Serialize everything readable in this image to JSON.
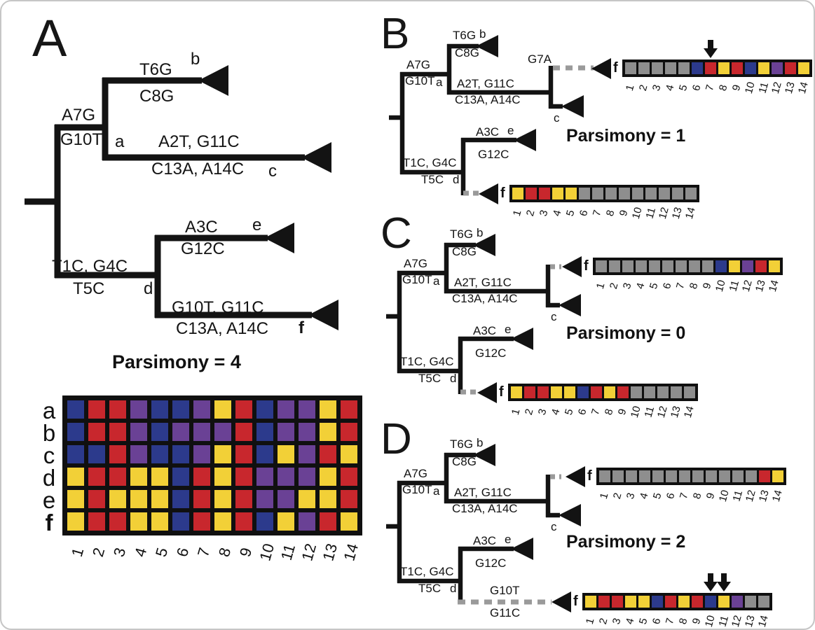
{
  "figure": {
    "panel_A": {
      "letter": "A",
      "parsimony": "Parsimony = 4"
    },
    "panel_B": {
      "letter": "B",
      "parsimony": "Parsimony = 1",
      "recomb_label": "G7A"
    },
    "panel_C": {
      "letter": "C",
      "parsimony": "Parsimony = 0"
    },
    "panel_D": {
      "letter": "D",
      "parsimony": "Parsimony = 2",
      "recomb_label_top": "G10T",
      "recomb_label_bottom": "G11C"
    },
    "tree_labels": {
      "a_above": "A7G",
      "a_below": "G10T",
      "a_node": "a",
      "b_above": "T6G",
      "b_below": "C8G",
      "b_tip": "b",
      "c_above": "A2T, G11C",
      "c_below": "C13A, A14C",
      "c_tip": "c",
      "d_above": "T1C, G4C",
      "d_below": "T5C",
      "d_node": "d",
      "e_above": "A3C",
      "e_below": "G12C",
      "e_tip": "e",
      "f_above": "G10T, G11C",
      "f_below": "C13A, A14C",
      "f_tip": "f"
    }
  },
  "colors": {
    "A": "#c8272d",
    "T": "#2c3a8c",
    "G": "#6a4195",
    "C": "#f2d037",
    "masked": "#8e8e8e",
    "frame": "#101010"
  },
  "chart_data": [
    {
      "id": "alignment_matrix",
      "type": "heatmap",
      "rows": [
        "a",
        "b",
        "c",
        "d",
        "e",
        "f"
      ],
      "columns": [
        "1",
        "2",
        "3",
        "4",
        "5",
        "6",
        "7",
        "8",
        "9",
        "10",
        "11",
        "12",
        "13",
        "14"
      ],
      "values": [
        [
          "T",
          "A",
          "A",
          "G",
          "T",
          "T",
          "G",
          "C",
          "A",
          "T",
          "G",
          "G",
          "C",
          "A"
        ],
        [
          "T",
          "A",
          "A",
          "G",
          "T",
          "G",
          "G",
          "G",
          "A",
          "T",
          "G",
          "G",
          "C",
          "A"
        ],
        [
          "T",
          "T",
          "A",
          "G",
          "T",
          "T",
          "G",
          "C",
          "A",
          "T",
          "C",
          "G",
          "A",
          "C"
        ],
        [
          "C",
          "A",
          "A",
          "C",
          "C",
          "T",
          "A",
          "C",
          "A",
          "G",
          "G",
          "G",
          "C",
          "A"
        ],
        [
          "C",
          "A",
          "C",
          "C",
          "C",
          "T",
          "A",
          "C",
          "A",
          "G",
          "G",
          "C",
          "C",
          "A"
        ],
        [
          "C",
          "A",
          "A",
          "C",
          "C",
          "T",
          "A",
          "C",
          "A",
          "T",
          "C",
          "G",
          "A",
          "C"
        ]
      ],
      "color_legend": {
        "A": "red",
        "T": "blue",
        "G": "purple",
        "C": "yellow",
        "masked": "gray"
      }
    },
    {
      "id": "B_upper",
      "type": "heatmap",
      "rows": [
        "f"
      ],
      "columns": [
        "1",
        "2",
        "3",
        "4",
        "5",
        "6",
        "7",
        "8",
        "9",
        "10",
        "11",
        "12",
        "13",
        "14"
      ],
      "values": [
        [
          null,
          null,
          null,
          null,
          null,
          "T",
          "A",
          "C",
          "A",
          "T",
          "C",
          "G",
          "A",
          "C"
        ]
      ],
      "arrows": [
        6
      ]
    },
    {
      "id": "B_lower",
      "type": "heatmap",
      "rows": [
        "f"
      ],
      "columns": [
        "1",
        "2",
        "3",
        "4",
        "5",
        "6",
        "7",
        "8",
        "9",
        "10",
        "11",
        "12",
        "13",
        "14"
      ],
      "values": [
        [
          "C",
          "A",
          "A",
          "C",
          "C",
          null,
          null,
          null,
          null,
          null,
          null,
          null,
          null,
          null
        ]
      ]
    },
    {
      "id": "C_upper",
      "type": "heatmap",
      "rows": [
        "f"
      ],
      "columns": [
        "1",
        "2",
        "3",
        "4",
        "5",
        "6",
        "7",
        "8",
        "9",
        "10",
        "11",
        "12",
        "13",
        "14"
      ],
      "values": [
        [
          null,
          null,
          null,
          null,
          null,
          null,
          null,
          null,
          null,
          "T",
          "C",
          "G",
          "A",
          "C"
        ]
      ]
    },
    {
      "id": "C_lower",
      "type": "heatmap",
      "rows": [
        "f"
      ],
      "columns": [
        "1",
        "2",
        "3",
        "4",
        "5",
        "6",
        "7",
        "8",
        "9",
        "10",
        "11",
        "12",
        "13",
        "14"
      ],
      "values": [
        [
          "C",
          "A",
          "A",
          "C",
          "C",
          "T",
          "A",
          "C",
          "A",
          null,
          null,
          null,
          null,
          null
        ]
      ]
    },
    {
      "id": "D_upper",
      "type": "heatmap",
      "rows": [
        "f"
      ],
      "columns": [
        "1",
        "2",
        "3",
        "4",
        "5",
        "6",
        "7",
        "8",
        "9",
        "10",
        "11",
        "12",
        "13",
        "14"
      ],
      "values": [
        [
          null,
          null,
          null,
          null,
          null,
          null,
          null,
          null,
          null,
          null,
          null,
          null,
          "A",
          "C"
        ]
      ]
    },
    {
      "id": "D_lower",
      "type": "heatmap",
      "rows": [
        "f"
      ],
      "columns": [
        "1",
        "2",
        "3",
        "4",
        "5",
        "6",
        "7",
        "8",
        "9",
        "10",
        "11",
        "12",
        "13",
        "14"
      ],
      "values": [
        [
          "C",
          "A",
          "A",
          "C",
          "C",
          "T",
          "A",
          "C",
          "A",
          "T",
          "C",
          "G",
          null,
          null
        ]
      ],
      "arrows": [
        9,
        10
      ]
    }
  ]
}
